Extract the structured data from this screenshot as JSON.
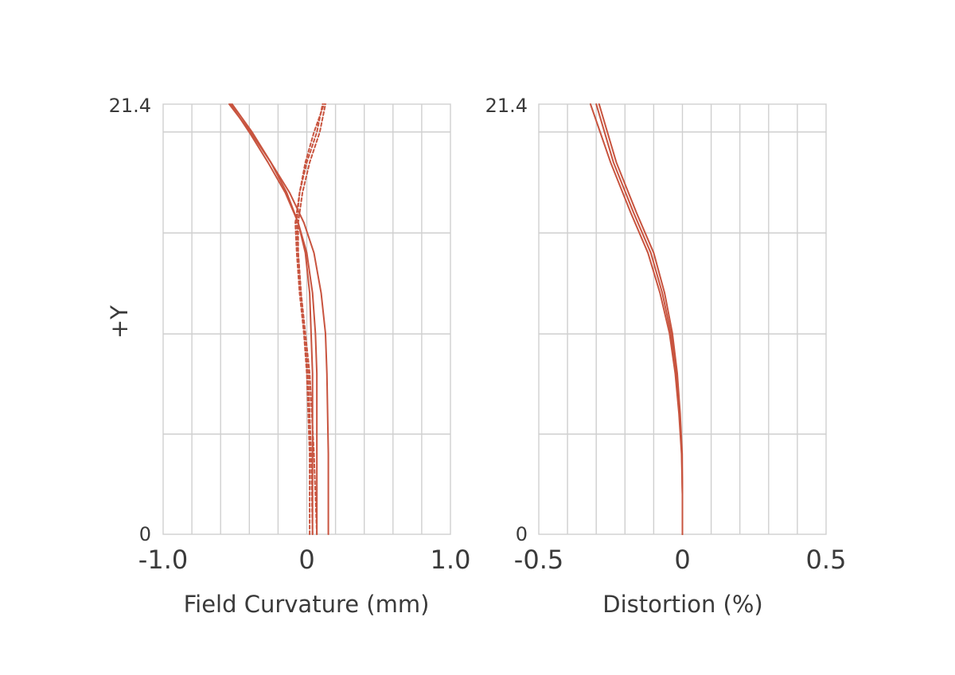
{
  "chart_data": [
    {
      "type": "line",
      "xlabel": "Field Curvature (mm)",
      "ylabel": "+Y",
      "xlim": [
        -1.0,
        1.0
      ],
      "ylim": [
        0,
        21.4
      ],
      "x_ticks": [
        "-1.0",
        "0",
        "1.0"
      ],
      "y_ticks": [
        "0",
        "21.4"
      ],
      "grid": true,
      "line_color": "#c8543f",
      "series": [
        {
          "style": "solid",
          "x": [
            0.04,
            0.04,
            0.04,
            0.03,
            0.02,
            -0.01,
            -0.06,
            -0.14,
            -0.25,
            -0.38,
            -0.52
          ],
          "y": [
            0,
            4,
            8,
            10,
            12,
            14,
            15.5,
            17,
            18.5,
            20,
            21.4
          ]
        },
        {
          "style": "solid",
          "x": [
            0.07,
            0.07,
            0.07,
            0.06,
            0.04,
            0.0,
            -0.06,
            -0.15,
            -0.27,
            -0.4,
            -0.53
          ],
          "y": [
            0,
            4,
            8,
            10,
            12,
            14,
            15.5,
            17,
            18.5,
            20,
            21.4
          ]
        },
        {
          "style": "solid",
          "x": [
            0.15,
            0.15,
            0.14,
            0.13,
            0.1,
            0.05,
            -0.02,
            -0.12,
            -0.25,
            -0.39,
            -0.54
          ],
          "y": [
            0,
            4,
            8,
            10,
            12,
            14,
            15.5,
            17,
            18.5,
            20,
            21.4
          ]
        },
        {
          "style": "dashed",
          "x": [
            0.02,
            0.02,
            0.0,
            -0.02,
            -0.04,
            -0.06,
            -0.07,
            -0.05,
            -0.01,
            0.05,
            0.12
          ],
          "y": [
            0,
            4,
            8,
            10,
            12,
            14,
            15.5,
            17,
            18.5,
            20,
            21.4
          ]
        },
        {
          "style": "dashed",
          "x": [
            0.04,
            0.03,
            0.01,
            -0.02,
            -0.05,
            -0.07,
            -0.08,
            -0.05,
            0.0,
            0.07,
            0.11
          ],
          "y": [
            0,
            4,
            8,
            10,
            12,
            14,
            15.5,
            17,
            18.5,
            20,
            21.4
          ]
        },
        {
          "style": "dashed",
          "x": [
            0.07,
            0.05,
            0.02,
            -0.01,
            -0.04,
            -0.06,
            -0.06,
            -0.03,
            0.02,
            0.09,
            0.13
          ],
          "y": [
            0,
            4,
            8,
            10,
            12,
            14,
            15.5,
            17,
            18.5,
            20,
            21.4
          ]
        }
      ]
    },
    {
      "type": "line",
      "xlabel": "Distortion (%)",
      "ylabel": "",
      "xlim": [
        -0.5,
        0.5
      ],
      "ylim": [
        0,
        21.4
      ],
      "x_ticks": [
        "-0.5",
        "0",
        "0.5"
      ],
      "y_ticks": [
        "0",
        "21.4"
      ],
      "grid": true,
      "line_color": "#c8543f",
      "series": [
        {
          "style": "solid",
          "x": [
            0.0,
            0.0,
            -0.003,
            -0.012,
            -0.025,
            -0.045,
            -0.078,
            -0.12,
            -0.18,
            -0.25,
            -0.32
          ],
          "y": [
            0,
            2,
            4,
            6,
            8,
            10,
            12,
            14,
            16,
            18.5,
            21.4
          ]
        },
        {
          "style": "solid",
          "x": [
            0.0,
            0.0,
            -0.002,
            -0.01,
            -0.021,
            -0.04,
            -0.07,
            -0.11,
            -0.17,
            -0.24,
            -0.3
          ],
          "y": [
            0,
            2,
            4,
            6,
            8,
            10,
            12,
            14,
            16,
            18.5,
            21.4
          ]
        },
        {
          "style": "solid",
          "x": [
            0.0,
            0.0,
            -0.001,
            -0.008,
            -0.018,
            -0.035,
            -0.062,
            -0.1,
            -0.16,
            -0.23,
            -0.29
          ],
          "y": [
            0,
            2,
            4,
            6,
            8,
            10,
            12,
            14,
            16,
            18.5,
            21.4
          ]
        }
      ]
    }
  ]
}
